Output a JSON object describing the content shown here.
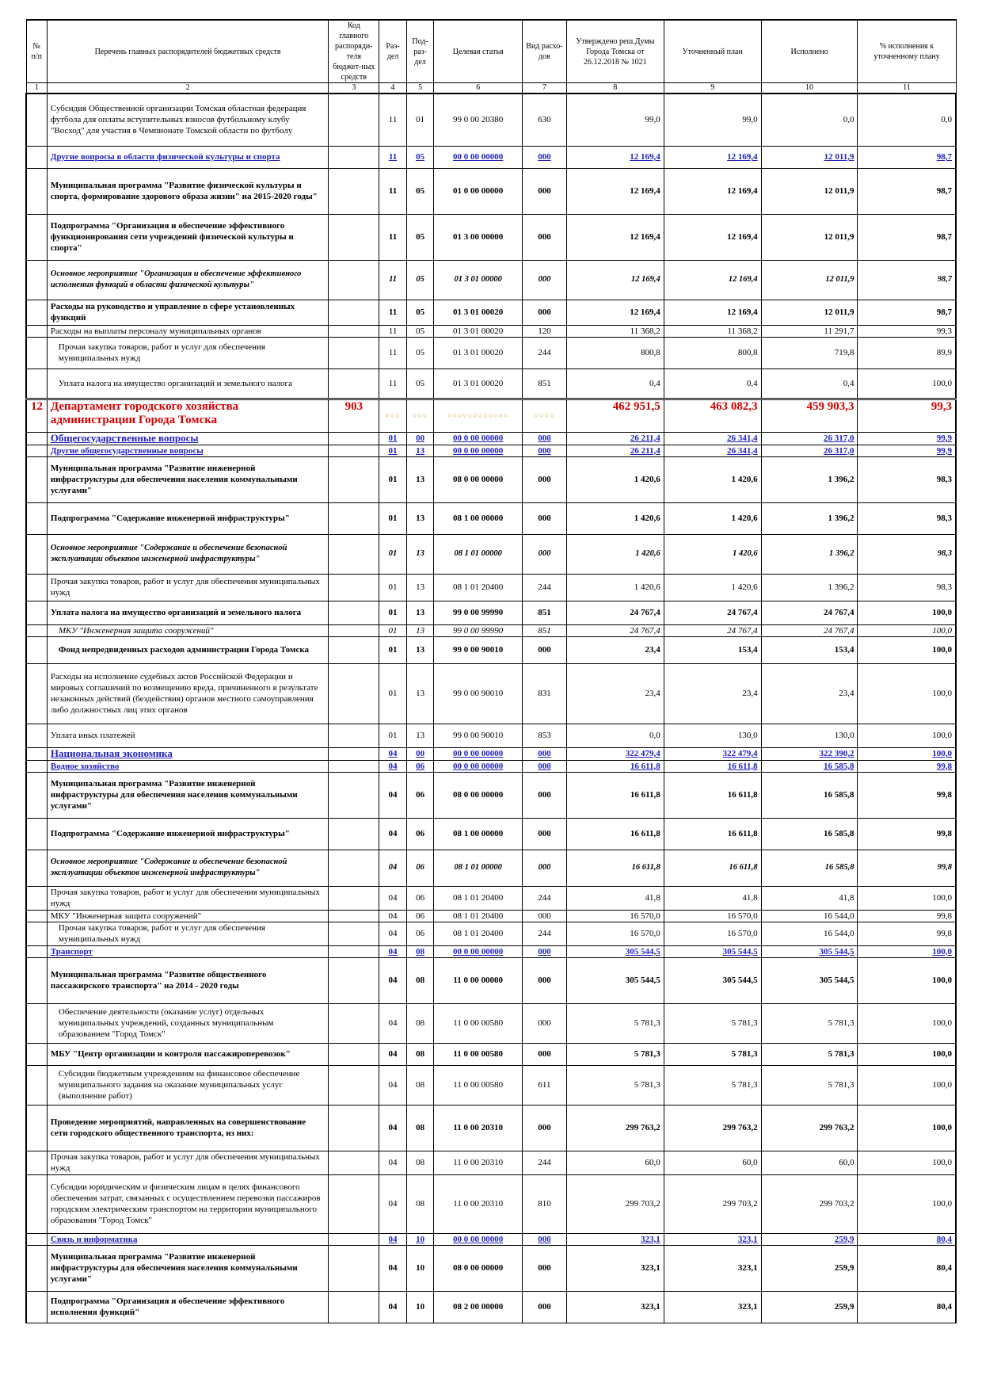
{
  "headers": {
    "c1": "№ п/п",
    "c2": "Перечень главных распорядителей бюджетных средств",
    "c3": "Код главного распоряди-теля бюджет-ных средств",
    "c4": "Раз-дел",
    "c5": "Под-раз-дел",
    "c6": "Целевая статья",
    "c7": "Вид расхо-дов",
    "c8": "Утверждено реш.Думы Города Томска от 26.12.2018 № 1021",
    "c9": "Уточненный план",
    "c10": "Исполнено",
    "c11": "% исполнения к уточненному плану"
  },
  "col_numbers": [
    "1",
    "2",
    "3",
    "4",
    "5",
    "6",
    "7",
    "8",
    "9",
    "10",
    "11"
  ],
  "rows": [
    {
      "style": "plain",
      "h": 66,
      "name": "Субсидия Общественной организации Томская областная федерация футбола для оплаты вступительных взносов футбольному клубу \"Восход\" для участия в Чемпионате Томской области по футболу",
      "razdel": "11",
      "podrazdel": "01",
      "cs": "99 0 00 20380",
      "vr": "630",
      "approved": "99,0",
      "plan": "99,0",
      "exec": "0,0",
      "pct": "0,0"
    },
    {
      "style": "blue",
      "h": 28,
      "name": "Другие вопросы в области физической культуры и спорта",
      "razdel": "11",
      "podrazdel": "05",
      "cs": "00 0 00 00000",
      "vr": "000",
      "approved": "12 169,4",
      "plan": "12 169,4",
      "exec": "12 011,9",
      "pct": "98,7"
    },
    {
      "style": "bold",
      "h": 58,
      "name": "Муниципальная программа \"Развитие физической культуры и спорта, формирование здорового образа жизни\" на 2015-2020 годы\"",
      "razdel": "11",
      "podrazdel": "05",
      "cs": "01 0 00 00000",
      "vr": "000",
      "approved": "12 169,4",
      "plan": "12 169,4",
      "exec": "12 011,9",
      "pct": "98,7"
    },
    {
      "style": "bold",
      "h": 58,
      "name": "Подпрограмма \"Организация и обеспечение эффективного функционирования сети учреждений физической культуры и спорта\"",
      "razdel": "11",
      "podrazdel": "05",
      "cs": "01 3 00 00000",
      "vr": "000",
      "approved": "12 169,4",
      "plan": "12 169,4",
      "exec": "12 011,9",
      "pct": "98,7"
    },
    {
      "style": "italic",
      "h": 50,
      "name": "Основное мероприятие \"Организация и обеспечение эффективного исполнения функций в области физической культуры\"",
      "razdel": "11",
      "podrazdel": "05",
      "cs": "01 3 01 00000",
      "vr": "000",
      "approved": "12 169,4",
      "plan": "12 169,4",
      "exec": "12 011,9",
      "pct": "98,7"
    },
    {
      "style": "bold",
      "h": 32,
      "name": "Расходы на руководство и управление в сфере установленных функций",
      "razdel": "11",
      "podrazdel": "05",
      "cs": "01 3 01 00020",
      "vr": "000",
      "approved": "12 169,4",
      "plan": "12 169,4",
      "exec": "12 011,9",
      "pct": "98,7"
    },
    {
      "style": "plain",
      "h": 14,
      "name": "Расходы на выплаты персоналу муниципальных органов",
      "razdel": "11",
      "podrazdel": "05",
      "cs": "01 3 01 00020",
      "vr": "120",
      "approved": "11 368,2",
      "plan": "11 368,2",
      "exec": "11 291,7",
      "pct": "99,3"
    },
    {
      "style": "plain indent",
      "h": 40,
      "name": "Прочая закупка товаров, работ и услуг для обеспечения муниципальных нужд",
      "razdel": "11",
      "podrazdel": "05",
      "cs": "01 3 01 00020",
      "vr": "244",
      "approved": "800,8",
      "plan": "800,8",
      "exec": "719,8",
      "pct": "89,9"
    },
    {
      "style": "plain indent gap",
      "h": 38,
      "name": "Уплата налога на имущество организаций и земельного налога",
      "razdel": "11",
      "podrazdel": "05",
      "cs": "01 3 01 00020",
      "vr": "851",
      "approved": "0,4",
      "plan": "0,4",
      "exec": "0,4",
      "pct": "100,0"
    },
    {
      "style": "dept",
      "h": 42,
      "num": "12",
      "name": "Департамент городского хозяйства администрации Города Томска",
      "code": "903",
      "razdel": "○○○",
      "podrazdel": "○○○",
      "cs": "○○○○○○○○○○○○",
      "vr": "○○○○",
      "approved": "462 951,5",
      "plan": "463 082,3",
      "exec": "459 903,3",
      "pct": "99,3"
    },
    {
      "style": "blue big",
      "h": 16,
      "name": "Общегосударственные вопросы",
      "razdel": "01",
      "podrazdel": "00",
      "cs": "00 0 00 00000",
      "vr": "000",
      "approved": "26 211,4",
      "plan": "26 341,4",
      "exec": "26 317,0",
      "pct": "99,9"
    },
    {
      "style": "blue",
      "h": 14,
      "name": "Другие общегосударственные вопросы",
      "razdel": "01",
      "podrazdel": "13",
      "cs": "00 0 00 00000",
      "vr": "000",
      "approved": "26 211,4",
      "plan": "26 341,4",
      "exec": "26 317,0",
      "pct": "99,9"
    },
    {
      "style": "bold",
      "h": 58,
      "name": "Муниципальная программа \"Развитие инженерной инфраструктуры для обеспечения населения коммунальными услугами\"",
      "razdel": "01",
      "podrazdel": "13",
      "cs": "08 0 00 00000",
      "vr": "000",
      "approved": "1 420,6",
      "plan": "1 420,6",
      "exec": "1 396,2",
      "pct": "98,3"
    },
    {
      "style": "bold",
      "h": 40,
      "name": "Подпрограмма \"Содержание инженерной инфраструктуры\"",
      "razdel": "01",
      "podrazdel": "13",
      "cs": "08 1 00 00000",
      "vr": "000",
      "approved": "1 420,6",
      "plan": "1 420,6",
      "exec": "1 396,2",
      "pct": "98,3"
    },
    {
      "style": "italic",
      "h": 50,
      "name": "Основное мероприятие \"Содержание и обеспечение безопасной эксплуатации объектов инженерной инфраструктуры\"",
      "razdel": "01",
      "podrazdel": "13",
      "cs": "08 1 01 00000",
      "vr": "000",
      "approved": "1 420,6",
      "plan": "1 420,6",
      "exec": "1 396,2",
      "pct": "98,3"
    },
    {
      "style": "plain",
      "h": 34,
      "name": "Прочая закупка товаров, работ и услуг для обеспечения муниципальных нужд",
      "razdel": "01",
      "podrazdel": "13",
      "cs": "08 1 01 20400",
      "vr": "244",
      "approved": "1 420,6",
      "plan": "1 420,6",
      "exec": "1 396,2",
      "pct": "98,3"
    },
    {
      "style": "bold",
      "h": 30,
      "name": "Уплата налога на имущество организаций и земельного налога",
      "razdel": "01",
      "podrazdel": "13",
      "cs": "99 0 00 99990",
      "vr": "851",
      "approved": "24 767,4",
      "plan": "24 767,4",
      "exec": "24 767,4",
      "pct": "100,0"
    },
    {
      "style": "italicplain indent",
      "h": 14,
      "name": "МКУ \"Инженерная защита сооружений\"",
      "razdel": "01",
      "podrazdel": "13",
      "cs": "99 0 00 99990",
      "vr": "851",
      "approved": "24 767,4",
      "plan": "24 767,4",
      "exec": "24 767,4",
      "pct": "100,0"
    },
    {
      "style": "bold indent",
      "h": 34,
      "name": "Фонд непредвиденных расходов администрации Города Томска",
      "razdel": "01",
      "podrazdel": "13",
      "cs": "99 0 00 90010",
      "vr": "000",
      "approved": "23,4",
      "plan": "153,4",
      "exec": "153,4",
      "pct": "100,0"
    },
    {
      "style": "plain",
      "h": 76,
      "name": "Расходы на исполнение судебных актов Российской Федерации и мировых соглашений по возмещению вреда, причиненного в результате незаконных действий (бездействия) органов местного самоуправления либо должностных лиц этих органов",
      "razdel": "01",
      "podrazdel": "13",
      "cs": "99 0 00 90010",
      "vr": "831",
      "approved": "23,4",
      "plan": "23,4",
      "exec": "23,4",
      "pct": "100,0"
    },
    {
      "style": "plain",
      "h": 30,
      "name": "Уплата иных платежей",
      "razdel": "01",
      "podrazdel": "13",
      "cs": "99 0 00 90010",
      "vr": "853",
      "approved": "0,0",
      "plan": "130,0",
      "exec": "130,0",
      "pct": "100,0"
    },
    {
      "style": "blue big",
      "h": 16,
      "name": "Национальная экономика",
      "razdel": "04",
      "podrazdel": "00",
      "cs": "00 0 00 00000",
      "vr": "000",
      "approved": "322 479,4",
      "plan": "322 479,4",
      "exec": "322 390,2",
      "pct": "100,0"
    },
    {
      "style": "blue",
      "h": 14,
      "name": "Водное хозяйство",
      "razdel": "04",
      "podrazdel": "06",
      "cs": "00 0 00 00000",
      "vr": "000",
      "approved": "16 611,8",
      "plan": "16 611,8",
      "exec": "16 585,8",
      "pct": "99,8"
    },
    {
      "style": "bold",
      "h": 58,
      "name": "Муниципальная программа \"Развитие инженерной инфраструктуры для обеспечения населения коммунальными услугами\"",
      "razdel": "04",
      "podrazdel": "06",
      "cs": "08 0 00 00000",
      "vr": "000",
      "approved": "16 611,8",
      "plan": "16 611,8",
      "exec": "16 585,8",
      "pct": "99,8"
    },
    {
      "style": "bold",
      "h": 40,
      "name": "Подпрограмма \"Содержание инженерной инфраструктуры\"",
      "razdel": "04",
      "podrazdel": "06",
      "cs": "08 1 00 00000",
      "vr": "000",
      "approved": "16 611,8",
      "plan": "16 611,8",
      "exec": "16 585,8",
      "pct": "99,8"
    },
    {
      "style": "italic",
      "h": 46,
      "name": "Основное мероприятие \"Содержание и обеспечение безопасной эксплуатации объектов инженерной инфраструктуры\"",
      "razdel": "04",
      "podrazdel": "06",
      "cs": "08 1 01 00000",
      "vr": "000",
      "approved": "16 611,8",
      "plan": "16 611,8",
      "exec": "16 585,8",
      "pct": "99,8"
    },
    {
      "style": "plain",
      "h": 30,
      "name": "Прочая закупка товаров, работ и услуг для обеспечения муниципальных нужд",
      "razdel": "04",
      "podrazdel": "06",
      "cs": "08 1 01 20400",
      "vr": "244",
      "approved": "41,8",
      "plan": "41,8",
      "exec": "41,8",
      "pct": "100,0"
    },
    {
      "style": "plain",
      "h": 14,
      "name": "МКУ \"Инженерная защита сооружений\"",
      "razdel": "04",
      "podrazdel": "06",
      "cs": "08 1 01 20400",
      "vr": "000",
      "approved": "16 570,0",
      "plan": "16 570,0",
      "exec": "16 544,0",
      "pct": "99,8"
    },
    {
      "style": "plain indent",
      "h": 30,
      "name": "Прочая закупка товаров, работ и услуг для обеспечения муниципальных нужд",
      "razdel": "04",
      "podrazdel": "06",
      "cs": "08 1 01 20400",
      "vr": "244",
      "approved": "16 570,0",
      "plan": "16 570,0",
      "exec": "16 544,0",
      "pct": "99,8"
    },
    {
      "style": "blue",
      "h": 14,
      "name": "Транспорт",
      "razdel": "04",
      "podrazdel": "08",
      "cs": "00 0 00 00000",
      "vr": "000",
      "approved": "305 544,5",
      "plan": "305 544,5",
      "exec": "305 544,5",
      "pct": "100,0"
    },
    {
      "style": "bold",
      "h": 58,
      "name": "Муниципальная программа \"Развитие общественного пассажирского транспорта\" на 2014 - 2020 годы",
      "razdel": "04",
      "podrazdel": "08",
      "cs": "11 0 00 00000",
      "vr": "000",
      "approved": "305 544,5",
      "plan": "305 544,5",
      "exec": "305 544,5",
      "pct": "100,0"
    },
    {
      "style": "plain indent",
      "h": 50,
      "name": "Обеспечение деятельности (оказание услуг) отдельных муниципальных учреждений, созданных муниципальным образованием \"Город Томск\"",
      "razdel": "04",
      "podrazdel": "08",
      "cs": "11 0 00 00580",
      "vr": "000",
      "approved": "5 781,3",
      "plan": "5 781,3",
      "exec": "5 781,3",
      "pct": "100,0"
    },
    {
      "style": "bold",
      "h": 28,
      "name": "МБУ \"Центр организации и контроля пассажироперевозок\"",
      "razdel": "04",
      "podrazdel": "08",
      "cs": "11 0 00 00580",
      "vr": "000",
      "approved": "5 781,3",
      "plan": "5 781,3",
      "exec": "5 781,3",
      "pct": "100,0"
    },
    {
      "style": "plain indent",
      "h": 50,
      "name": "Субсидии бюджетным учреждениям на финансовое обеспечение муниципального задания на оказание муниципальных услуг (выполнение работ)",
      "razdel": "04",
      "podrazdel": "08",
      "cs": "11 0 00 00580",
      "vr": "611",
      "approved": "5 781,3",
      "plan": "5 781,3",
      "exec": "5 781,3",
      "pct": "100,0"
    },
    {
      "style": "bold",
      "h": 58,
      "name": "Проведение мероприятий, направленных на совершенствование сети городского общественного транспорта, из них:",
      "razdel": "04",
      "podrazdel": "08",
      "cs": "11 0 00 20310",
      "vr": "000",
      "approved": "299 763,2",
      "plan": "299 763,2",
      "exec": "299 763,2",
      "pct": "100,0"
    },
    {
      "style": "plain",
      "h": 30,
      "name": "Прочая закупка товаров, работ и услуг для обеспечения муниципальных нужд",
      "razdel": "04",
      "podrazdel": "08",
      "cs": "11 0 00 20310",
      "vr": "244",
      "approved": "60,0",
      "plan": "60,0",
      "exec": "60,0",
      "pct": "100,0"
    },
    {
      "style": "plain",
      "h": 74,
      "name": "Субсидии юридическим и физическим лицам в целях финансового обеспечения затрат, связанных с осуществлением перевозки пассажиров городским электрическим транспортом на территории муниципального образования \"Город Томск\"",
      "razdel": "04",
      "podrazdel": "08",
      "cs": "11 0 00 20310",
      "vr": "810",
      "approved": "299 703,2",
      "plan": "299 703,2",
      "exec": "299 703,2",
      "pct": "100,0"
    },
    {
      "style": "blue",
      "h": 14,
      "name": "Связь и информатика",
      "razdel": "04",
      "podrazdel": "10",
      "cs": "00 0 00 00000",
      "vr": "000",
      "approved": "323,1",
      "plan": "323,1",
      "exec": "259,9",
      "pct": "80,4"
    },
    {
      "style": "bold",
      "h": 58,
      "name": "Муниципальная программа \"Развитие инженерной инфраструктуры для обеспечения населения коммунальными услугами\"",
      "razdel": "04",
      "podrazdel": "10",
      "cs": "08 0 00 00000",
      "vr": "000",
      "approved": "323,1",
      "plan": "323,1",
      "exec": "259,9",
      "pct": "80,4"
    },
    {
      "style": "bold",
      "h": 40,
      "name": "Подпрограмма \"Организация и обеспечение эффективного исполнения функций\"",
      "razdel": "04",
      "podrazdel": "10",
      "cs": "08 2 00 00000",
      "vr": "000",
      "approved": "323,1",
      "plan": "323,1",
      "exec": "259,9",
      "pct": "80,4"
    }
  ]
}
